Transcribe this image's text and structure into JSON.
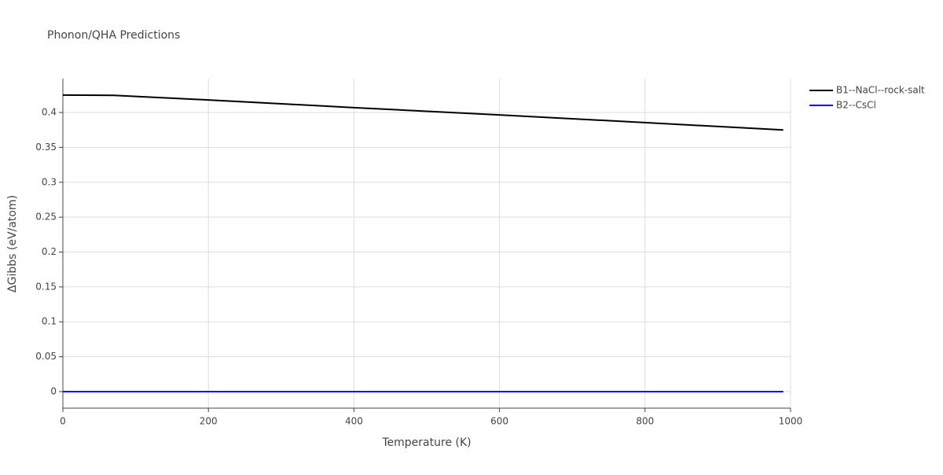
{
  "chart_data": {
    "type": "line",
    "title": "Phonon/QHA Predictions",
    "x_label": "Temperature (K)",
    "y_label": "ΔGibbs (eV/atom)",
    "x": [
      0,
      70,
      200,
      400,
      600,
      800,
      990
    ],
    "series": [
      {
        "name": "B1--NaCl--rock-salt",
        "color": "#000000",
        "values": [
          0.425,
          0.4245,
          0.418,
          0.407,
          0.3965,
          0.3855,
          0.375
        ]
      },
      {
        "name": "B2--CsCl",
        "color": "#0000ff",
        "values": [
          0,
          0,
          0,
          0,
          0,
          0,
          0
        ]
      }
    ],
    "xlim": [
      0,
      1000
    ],
    "xticks": [
      0,
      200,
      400,
      600,
      800,
      1000
    ],
    "ylim": [
      -0.0237,
      0.4485
    ],
    "yticks": [
      0,
      0.05,
      0.1,
      0.15,
      0.2,
      0.25,
      0.3,
      0.35,
      0.4
    ],
    "grid": true,
    "legend": "top-right"
  }
}
